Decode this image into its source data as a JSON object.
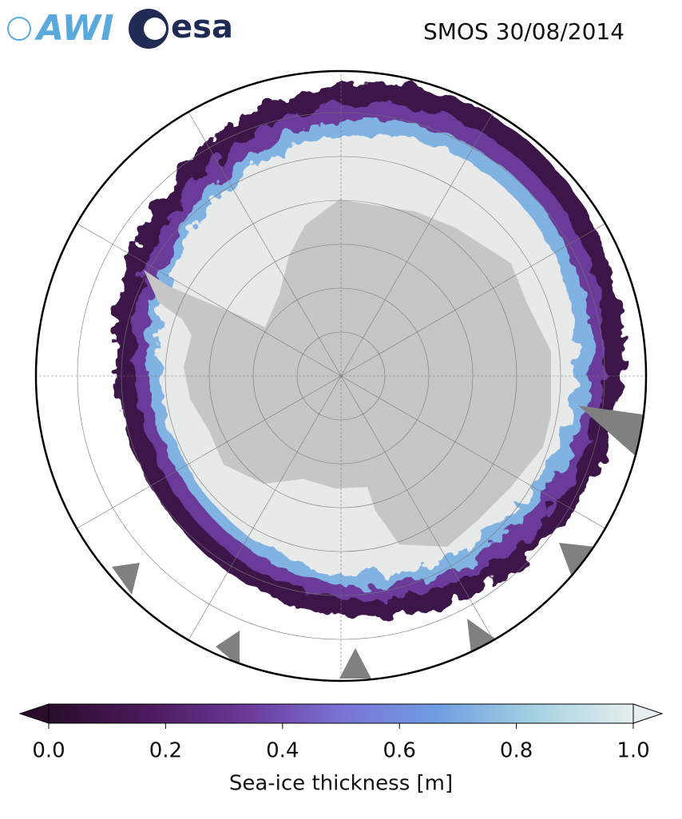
{
  "header": {
    "logos": [
      "AWI",
      "esa"
    ],
    "title": "SMOS 30/08/2014"
  },
  "chart_data": {
    "type": "colorbar",
    "label": "Sea-ice thickness [m]",
    "xlim": [
      0,
      1
    ],
    "xticks": [
      {
        "value": 0,
        "label": "0.0"
      },
      {
        "value": 0.2,
        "label": "0.2"
      },
      {
        "value": 0.4,
        "label": "0.4"
      },
      {
        "value": 0.6,
        "label": "0.6"
      },
      {
        "value": 0.8,
        "label": "0.8"
      },
      {
        "value": 1,
        "label": "1.0"
      }
    ],
    "colors": [
      "#2a0d2c",
      "#4b1a5c",
      "#6a3897",
      "#7a72d6",
      "#6f9fe2",
      "#a6d2e2",
      "#e6eeee"
    ],
    "extend": "both"
  }
}
